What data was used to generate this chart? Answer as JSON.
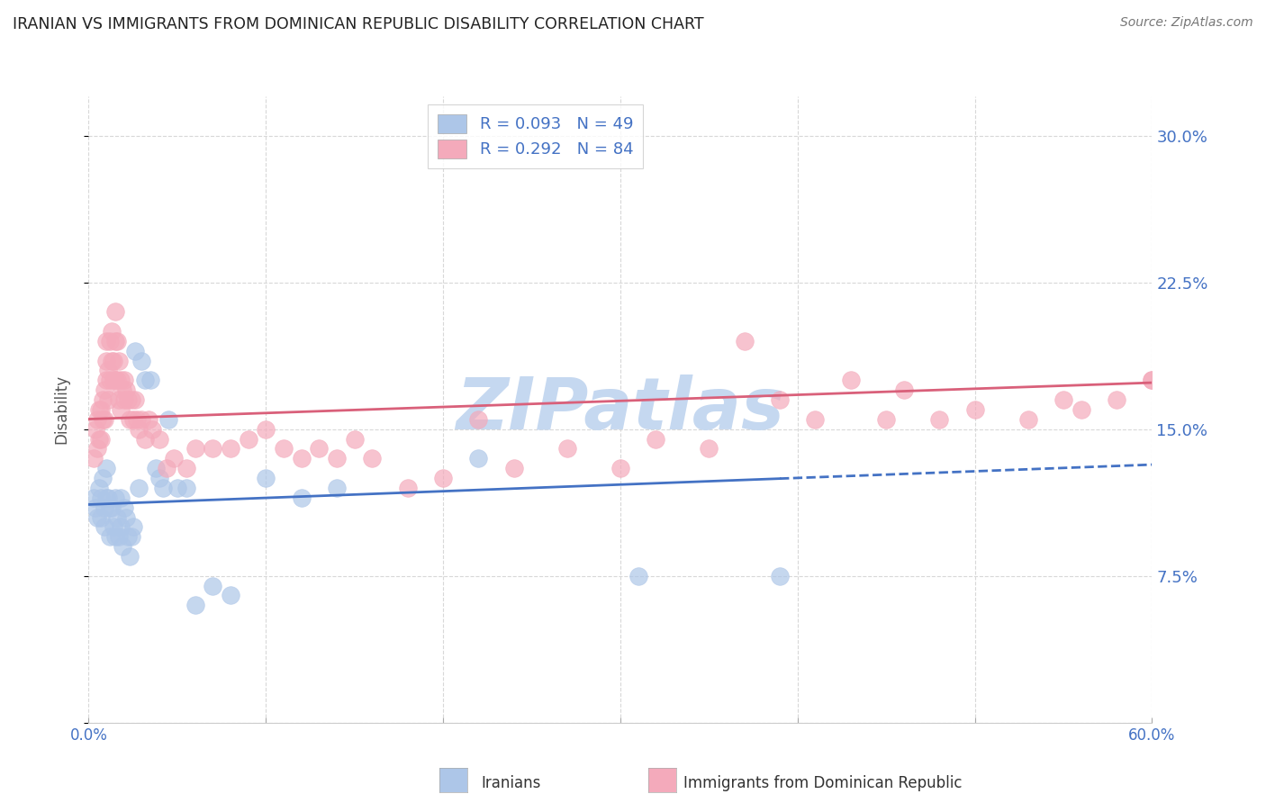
{
  "title": "IRANIAN VS IMMIGRANTS FROM DOMINICAN REPUBLIC DISABILITY CORRELATION CHART",
  "source": "Source: ZipAtlas.com",
  "ylabel": "Disability",
  "xlabel": "",
  "legend_label_1": "Iranians",
  "legend_label_2": "Immigrants from Dominican Republic",
  "r1": 0.093,
  "n1": 49,
  "r2": 0.292,
  "n2": 84,
  "color1": "#adc6e8",
  "color2": "#f4aabb",
  "line1_color": "#4472c4",
  "line2_color": "#d9607a",
  "watermark": "ZIPatlas",
  "xlim": [
    0.0,
    0.6
  ],
  "ylim": [
    0.0,
    0.32
  ],
  "xticks": [
    0.0,
    0.1,
    0.2,
    0.3,
    0.4,
    0.5,
    0.6
  ],
  "yticks": [
    0.0,
    0.075,
    0.15,
    0.225,
    0.3
  ],
  "ytick_labels_right": [
    "7.5%",
    "15.0%",
    "22.5%",
    "30.0%"
  ],
  "xtick_labels": [
    "0.0%",
    "",
    "",
    "",
    "",
    "",
    "60.0%"
  ],
  "background_color": "#ffffff",
  "grid_color": "#d8d8d8",
  "title_color": "#222222",
  "axis_label_color": "#555555",
  "tick_label_color_right": "#4472c4",
  "watermark_color": "#c5d8f0",
  "iranians_x": [
    0.003,
    0.004,
    0.005,
    0.006,
    0.007,
    0.007,
    0.008,
    0.009,
    0.009,
    0.01,
    0.01,
    0.011,
    0.012,
    0.012,
    0.013,
    0.014,
    0.015,
    0.015,
    0.016,
    0.017,
    0.018,
    0.018,
    0.019,
    0.02,
    0.021,
    0.022,
    0.023,
    0.024,
    0.025,
    0.026,
    0.028,
    0.03,
    0.032,
    0.035,
    0.038,
    0.04,
    0.042,
    0.045,
    0.05,
    0.055,
    0.06,
    0.07,
    0.08,
    0.1,
    0.12,
    0.14,
    0.22,
    0.31,
    0.39
  ],
  "iranians_y": [
    0.115,
    0.11,
    0.105,
    0.12,
    0.115,
    0.105,
    0.125,
    0.11,
    0.1,
    0.13,
    0.115,
    0.115,
    0.11,
    0.095,
    0.11,
    0.1,
    0.115,
    0.095,
    0.105,
    0.095,
    0.115,
    0.1,
    0.09,
    0.11,
    0.105,
    0.095,
    0.085,
    0.095,
    0.1,
    0.19,
    0.12,
    0.185,
    0.175,
    0.175,
    0.13,
    0.125,
    0.12,
    0.155,
    0.12,
    0.12,
    0.06,
    0.07,
    0.065,
    0.125,
    0.115,
    0.12,
    0.135,
    0.075,
    0.075
  ],
  "dominican_x": [
    0.003,
    0.004,
    0.005,
    0.005,
    0.006,
    0.006,
    0.007,
    0.007,
    0.008,
    0.008,
    0.009,
    0.009,
    0.01,
    0.01,
    0.01,
    0.011,
    0.011,
    0.012,
    0.012,
    0.013,
    0.013,
    0.014,
    0.014,
    0.015,
    0.015,
    0.015,
    0.016,
    0.016,
    0.017,
    0.017,
    0.018,
    0.018,
    0.019,
    0.02,
    0.02,
    0.021,
    0.022,
    0.023,
    0.024,
    0.025,
    0.026,
    0.027,
    0.028,
    0.03,
    0.032,
    0.034,
    0.036,
    0.04,
    0.044,
    0.048,
    0.055,
    0.06,
    0.07,
    0.08,
    0.09,
    0.1,
    0.11,
    0.12,
    0.13,
    0.14,
    0.15,
    0.16,
    0.18,
    0.2,
    0.22,
    0.24,
    0.27,
    0.3,
    0.32,
    0.35,
    0.37,
    0.39,
    0.41,
    0.43,
    0.45,
    0.46,
    0.48,
    0.5,
    0.53,
    0.55,
    0.56,
    0.58,
    0.6,
    0.6
  ],
  "dominican_y": [
    0.135,
    0.15,
    0.14,
    0.155,
    0.145,
    0.16,
    0.145,
    0.16,
    0.155,
    0.165,
    0.17,
    0.155,
    0.185,
    0.195,
    0.175,
    0.18,
    0.165,
    0.175,
    0.195,
    0.185,
    0.2,
    0.185,
    0.175,
    0.21,
    0.195,
    0.175,
    0.195,
    0.175,
    0.185,
    0.165,
    0.175,
    0.16,
    0.17,
    0.165,
    0.175,
    0.17,
    0.165,
    0.155,
    0.165,
    0.155,
    0.165,
    0.155,
    0.15,
    0.155,
    0.145,
    0.155,
    0.15,
    0.145,
    0.13,
    0.135,
    0.13,
    0.14,
    0.14,
    0.14,
    0.145,
    0.15,
    0.14,
    0.135,
    0.14,
    0.135,
    0.145,
    0.135,
    0.12,
    0.125,
    0.155,
    0.13,
    0.14,
    0.13,
    0.145,
    0.14,
    0.195,
    0.165,
    0.155,
    0.175,
    0.155,
    0.17,
    0.155,
    0.16,
    0.155,
    0.165,
    0.16,
    0.165,
    0.175,
    0.175
  ]
}
